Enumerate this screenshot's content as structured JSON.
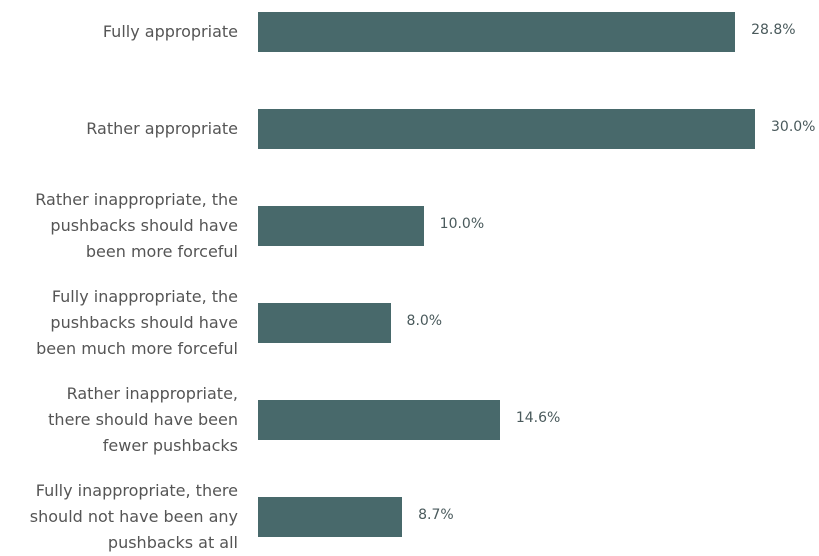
{
  "chart_data": {
    "type": "bar",
    "orientation": "horizontal",
    "categories": [
      "Fully appropriate",
      "Rather appropriate",
      "Rather inappropriate, the\npushbacks should have\nbeen more forceful",
      "Fully inappropriate, the\npushbacks should have\nbeen much more forceful",
      "Rather inappropriate,\nthere should have been\nfewer pushbacks",
      "Fully inappropriate, there\nshould not have been any\npushbacks at all"
    ],
    "values": [
      28.8,
      30.0,
      10.0,
      8.0,
      14.6,
      8.7
    ],
    "value_labels": [
      "28.8%",
      "30.0%",
      "10.0%",
      "8.0%",
      "14.6%",
      "8.7%"
    ],
    "color": "#48696b"
  }
}
